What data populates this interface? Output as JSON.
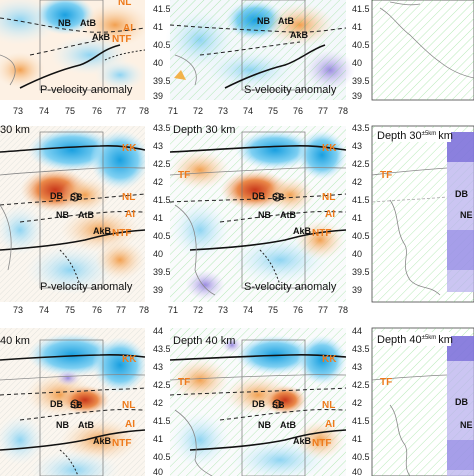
{
  "panels": {
    "row1": {
      "p_caption": "P-velocity anomaly",
      "s_caption": "S-velocity anomaly",
      "ylabels": [
        "41.5",
        "41",
        "40.5",
        "40",
        "39.5",
        "39"
      ],
      "ylabels_right": [
        "41.5",
        "41",
        "40.5",
        "40",
        "39.5",
        "39"
      ],
      "xlabels_p": [
        "73",
        "74",
        "75",
        "76",
        "77",
        "78"
      ],
      "xlabels_s": [
        "71",
        "72",
        "73",
        "74",
        "75",
        "76",
        "77",
        "78"
      ]
    },
    "row2": {
      "p_title": "30 km",
      "s_title": "Depth 30 km",
      "r_title": "Depth 30",
      "r_title_sup": "±5km",
      "r_title_end": "km",
      "p_caption": "P-velocity anomaly",
      "s_caption": "S-velocity anomaly",
      "ylabels": [
        "43.5",
        "43",
        "42.5",
        "42",
        "41.5",
        "41",
        "40.5",
        "40",
        "39.5",
        "39"
      ],
      "ylabels_right": [
        "43.5",
        "43",
        "42.5",
        "42",
        "41.5",
        "41",
        "40.5",
        "40",
        "39.5",
        "39"
      ],
      "xlabels_p": [
        "73",
        "74",
        "75",
        "76",
        "77",
        "78"
      ],
      "xlabels_s": [
        "71",
        "72",
        "73",
        "74",
        "75",
        "76",
        "77",
        "78"
      ]
    },
    "row3": {
      "p_title": "40 km",
      "s_title": "Depth 40 km",
      "r_title": "Depth 40",
      "r_title_sup": "±5km",
      "r_title_end": "km",
      "ylabels": [
        "44",
        "43.5",
        "43",
        "42.5",
        "42",
        "41.5",
        "41",
        "40.5",
        "40"
      ],
      "ylabels_right": [
        "44",
        "43.5",
        "43",
        "42.5",
        "42",
        "41.5",
        "41",
        "40.5",
        "40"
      ]
    }
  },
  "map_labels": {
    "NB": "NB",
    "AtB": "AtB",
    "AkB": "AkB",
    "DB": "DB",
    "SB": "SB",
    "NL": "NL",
    "AI": "AI",
    "NTF": "NTF",
    "KK": "KK",
    "TF": "TF",
    "DB_r": "DB",
    "NE_r": "NE"
  },
  "colors": {
    "fault_orange": "#ee7a1b",
    "slow": "#e8622a",
    "fast": "#3ab3e8"
  }
}
